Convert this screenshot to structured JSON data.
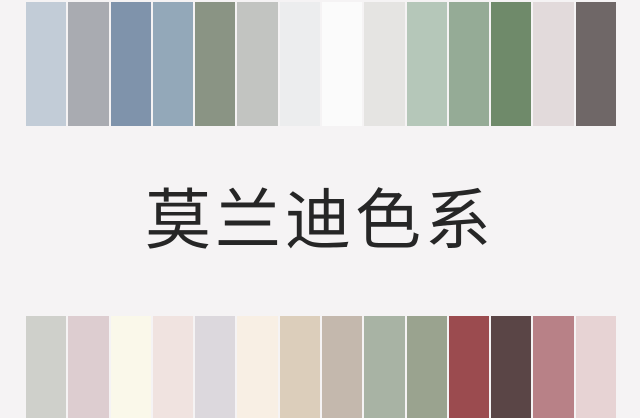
{
  "title": "莫兰迪色系",
  "top_swatches": [
    {
      "name": "light-blue-grey",
      "color": "#c2ccd7"
    },
    {
      "name": "grey",
      "color": "#a9abb1"
    },
    {
      "name": "slate-blue",
      "color": "#7f93ab"
    },
    {
      "name": "steel-blue-grey",
      "color": "#93a8b9"
    },
    {
      "name": "grey-green",
      "color": "#8a9484"
    },
    {
      "name": "light-grey",
      "color": "#c2c4c1"
    },
    {
      "name": "off-white",
      "color": "#ecedee"
    },
    {
      "name": "white",
      "color": "#fbfbfb"
    },
    {
      "name": "pale-grey",
      "color": "#e5e4e2"
    },
    {
      "name": "pale-sage",
      "color": "#b5c7b9"
    },
    {
      "name": "sage-green",
      "color": "#95ab96"
    },
    {
      "name": "olive-green",
      "color": "#6f8a6a"
    },
    {
      "name": "pale-pink-grey",
      "color": "#e2dadb"
    },
    {
      "name": "dark-taupe",
      "color": "#6f6767"
    }
  ],
  "bottom_swatches": [
    {
      "name": "light-grey",
      "color": "#cfd0cb"
    },
    {
      "name": "pale-mauve",
      "color": "#ddcdd0"
    },
    {
      "name": "cream",
      "color": "#faf8ea"
    },
    {
      "name": "blush",
      "color": "#f0e3e0"
    },
    {
      "name": "lavender-grey",
      "color": "#dcd8dd"
    },
    {
      "name": "ivory",
      "color": "#f8efe4"
    },
    {
      "name": "sand",
      "color": "#dccebb"
    },
    {
      "name": "taupe",
      "color": "#c4b8ad"
    },
    {
      "name": "sage-grey",
      "color": "#a8b3a4"
    },
    {
      "name": "olive-grey",
      "color": "#9aa38f"
    },
    {
      "name": "brick-red",
      "color": "#9b4b4f"
    },
    {
      "name": "plum-brown",
      "color": "#5a4546"
    },
    {
      "name": "dusty-rose",
      "color": "#b88187"
    },
    {
      "name": "pale-rose",
      "color": "#e7d3d4"
    }
  ]
}
